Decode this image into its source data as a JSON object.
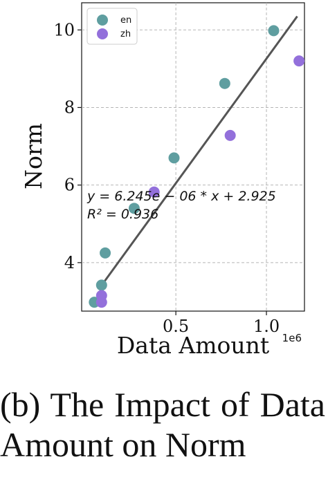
{
  "chart_data": {
    "type": "scatter",
    "xlabel": "Data Amount",
    "xlabel_exponent": "1e6",
    "ylabel": "Norm",
    "xlim": [
      -0.02,
      1.21
    ],
    "ylim": [
      2.75,
      10.7
    ],
    "xticks": [
      0.5,
      1.0
    ],
    "xtick_labels": [
      "0.5",
      "1.0"
    ],
    "yticks": [
      4,
      6,
      8,
      10
    ],
    "ytick_labels": [
      "4",
      "6",
      "8",
      "10"
    ],
    "grid": true,
    "legend_position": "top-left",
    "series": [
      {
        "name": "en",
        "color": "#5f9ea0",
        "points": [
          {
            "x": 0.05,
            "y": 2.98
          },
          {
            "x": 0.09,
            "y": 3.42
          },
          {
            "x": 0.11,
            "y": 4.25
          },
          {
            "x": 0.27,
            "y": 5.4
          },
          {
            "x": 0.49,
            "y": 6.7
          },
          {
            "x": 0.77,
            "y": 8.62
          },
          {
            "x": 1.04,
            "y": 9.98
          }
        ]
      },
      {
        "name": "zh",
        "color": "#9370db",
        "points": [
          {
            "x": 0.09,
            "y": 2.98
          },
          {
            "x": 0.09,
            "y": 3.15
          },
          {
            "x": 0.38,
            "y": 5.82
          },
          {
            "x": 0.8,
            "y": 7.28
          },
          {
            "x": 1.18,
            "y": 9.2
          }
        ]
      }
    ],
    "fit_line": {
      "x": [
        0.08,
        1.17
      ],
      "y": [
        3.35,
        10.35
      ],
      "color": "#555555"
    },
    "annotation_lines": [
      "y = 6.245e − 06 * x + 2.925",
      "R² = 0.936"
    ]
  },
  "caption": "(b) The Impact of Data Amount on Norm"
}
